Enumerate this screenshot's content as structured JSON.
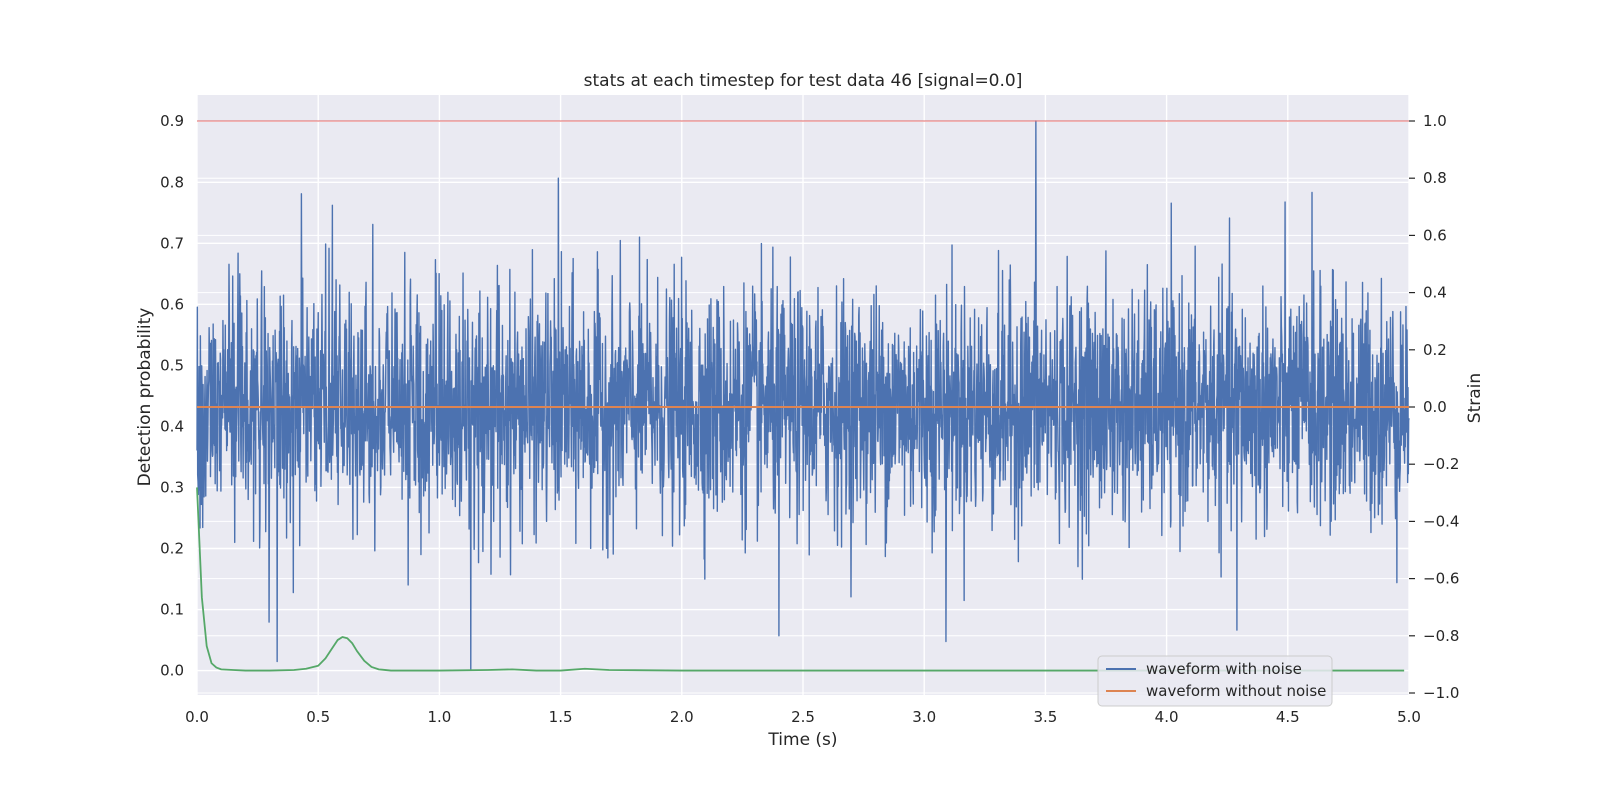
{
  "chart_data": {
    "type": "line",
    "title": "stats at each timestep for test data 46 [signal=0.0]",
    "xlabel": "Time (s)",
    "ylabel_left": "Detection probability",
    "ylabel_right": "Strain",
    "xlim": [
      0.0,
      5.0
    ],
    "ylim_left": [
      -0.04,
      0.943
    ],
    "ylim_right": [
      -1.0,
      1.0
    ],
    "x_ticks": [
      "0.0",
      "0.5",
      "1.0",
      "1.5",
      "2.0",
      "2.5",
      "3.0",
      "3.5",
      "4.0",
      "4.5",
      "5.0"
    ],
    "y_ticks_left": [
      "0.0",
      "0.1",
      "0.2",
      "0.3",
      "0.4",
      "0.5",
      "0.6",
      "0.7",
      "0.8",
      "0.9"
    ],
    "y_ticks_right": [
      "−1.0",
      "−0.8",
      "−0.6",
      "−0.4",
      "−0.2",
      "0.0",
      "0.2",
      "0.4",
      "0.6",
      "0.8",
      "1.0"
    ],
    "grid": true,
    "legend_position": "lower-right",
    "threshold": {
      "axis": "right",
      "value": 1.0,
      "color": "#e06666"
    },
    "series": [
      {
        "name": "waveform with noise",
        "axis": "right",
        "color": "#4c72b0",
        "noise_std": 0.2,
        "peak_points": [
          [
            0.33,
            -0.89
          ],
          [
            1.13,
            -0.92
          ],
          [
            1.49,
            0.8
          ],
          [
            2.4,
            -0.8
          ],
          [
            3.09,
            -0.82
          ],
          [
            3.46,
            1.0
          ],
          [
            4.29,
            -0.78
          ],
          [
            4.6,
            0.75
          ]
        ]
      },
      {
        "name": "waveform without noise",
        "axis": "right",
        "color": "#dd8452",
        "x": [
          0.0,
          5.0
        ],
        "y": [
          0.0,
          0.0
        ]
      },
      {
        "name": "Detection probability",
        "axis": "left",
        "color": "#55a868",
        "x": [
          0.0,
          0.02,
          0.04,
          0.06,
          0.08,
          0.1,
          0.15,
          0.2,
          0.3,
          0.4,
          0.45,
          0.5,
          0.53,
          0.56,
          0.58,
          0.6,
          0.62,
          0.64,
          0.66,
          0.69,
          0.72,
          0.75,
          0.8,
          1.0,
          1.2,
          1.3,
          1.4,
          1.5,
          1.6,
          1.7,
          2.0,
          3.0,
          4.0,
          4.98
        ],
        "y": [
          0.3,
          0.12,
          0.04,
          0.012,
          0.005,
          0.002,
          0.001,
          0.0,
          0.0,
          0.001,
          0.003,
          0.008,
          0.02,
          0.038,
          0.05,
          0.055,
          0.053,
          0.045,
          0.032,
          0.016,
          0.006,
          0.002,
          0.0,
          0.0,
          0.001,
          0.002,
          0.0,
          0.0,
          0.003,
          0.001,
          0.0,
          0.0,
          0.0,
          0.0
        ]
      }
    ]
  }
}
